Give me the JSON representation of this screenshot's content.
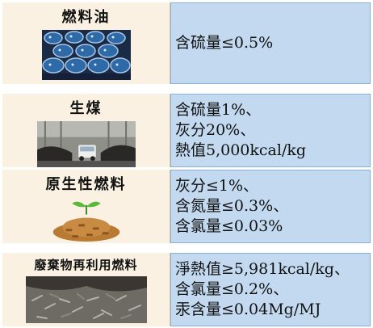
{
  "rows": [
    {
      "label": "燃料油",
      "specs": [
        "含硫量≤0.5%"
      ]
    },
    {
      "label": "生煤",
      "specs": [
        "含硫量1%、",
        "灰分20%、",
        "熱值5,000kcal/kg"
      ]
    },
    {
      "label": "原生性燃料",
      "specs": [
        "灰分≤1%、",
        "含氮量≤0.3%、",
        "含氯量≤0.03%"
      ]
    },
    {
      "label": "廢棄物再利用燃料",
      "specs": [
        "淨熱值≥5,981kcal/kg、",
        "含氯量≤0.2%、",
        "汞含量≤0.04Mg/MJ"
      ]
    }
  ],
  "colors": {
    "left_bg": "#fbf1e2",
    "right_bg": "#c2d9f0"
  }
}
